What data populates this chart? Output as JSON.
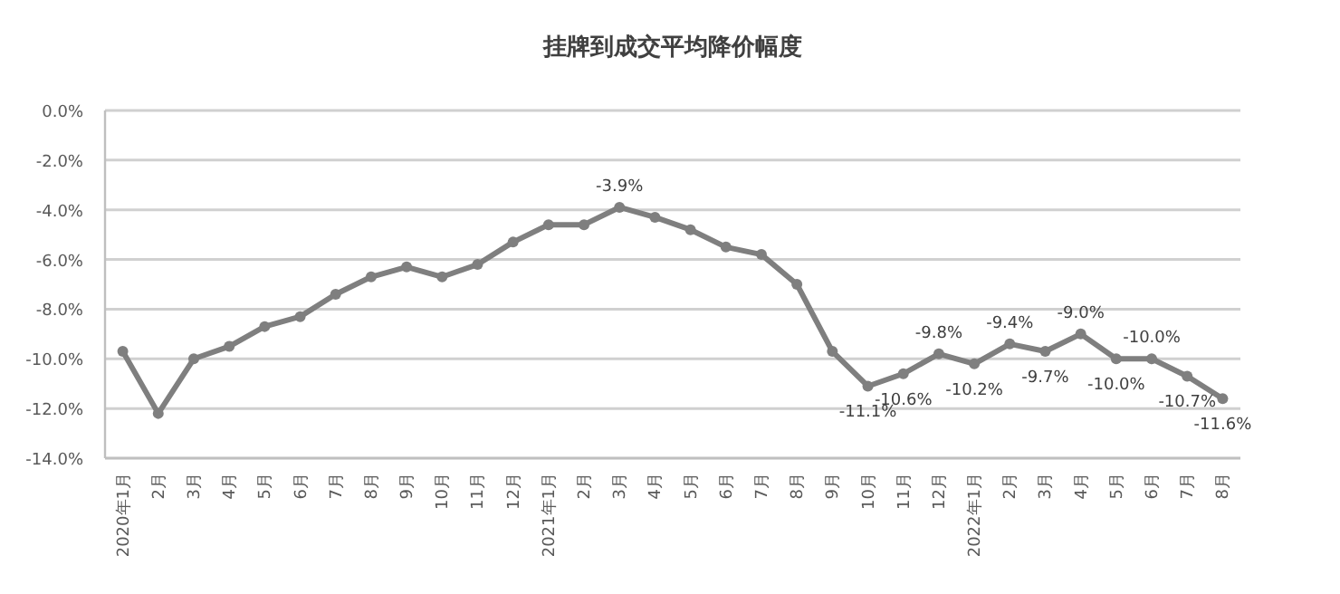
{
  "chart_data": {
    "type": "line",
    "title": "挂牌到成交平均降价幅度",
    "categories": [
      "2020年1月",
      "2月",
      "3月",
      "4月",
      "5月",
      "6月",
      "7月",
      "8月",
      "9月",
      "10月",
      "11月",
      "12月",
      "2021年1月",
      "2月",
      "3月",
      "4月",
      "5月",
      "6月",
      "7月",
      "8月",
      "9月",
      "10月",
      "11月",
      "12月",
      "2022年1月",
      "2月",
      "3月",
      "4月",
      "5月",
      "6月",
      "7月",
      "8月"
    ],
    "series": [
      {
        "color": "#7f7f7f",
        "values": [
          -9.7,
          -12.2,
          -10.0,
          -9.5,
          -8.7,
          -8.3,
          -7.4,
          -6.7,
          -6.3,
          -6.7,
          -6.2,
          -5.3,
          -4.6,
          -4.6,
          -3.9,
          -4.3,
          -4.8,
          -5.5,
          -5.8,
          -7.0,
          -9.7,
          -11.1,
          -10.6,
          -9.8,
          -10.2,
          -9.4,
          -9.7,
          -9.0,
          -10.0,
          -10.0,
          -10.7,
          -11.6
        ],
        "value_labels": [
          null,
          null,
          null,
          null,
          null,
          null,
          null,
          null,
          null,
          null,
          null,
          null,
          null,
          null,
          "-3.9%",
          null,
          null,
          null,
          null,
          null,
          null,
          "-11.1%",
          "-10.6%",
          "-9.8%",
          "-10.2%",
          "-9.4%",
          "-9.7%",
          "-9.0%",
          "-10.0%",
          "-10.0%",
          "-10.7%",
          "-11.6%"
        ]
      }
    ],
    "ylim": [
      -14,
      0
    ],
    "yticks": [
      {
        "value": 0,
        "label": "0.0%"
      },
      {
        "value": -2,
        "label": "-2.0%"
      },
      {
        "value": -4,
        "label": "-4.0%"
      },
      {
        "value": -6,
        "label": "-6.0%"
      },
      {
        "value": -8,
        "label": "-8.0%"
      },
      {
        "value": -10,
        "label": "-10.0%"
      },
      {
        "value": -12,
        "label": "-12.0%"
      },
      {
        "value": -14,
        "label": "-14.0%"
      }
    ],
    "grid": "y",
    "marker": "circle",
    "line_style": "solid"
  }
}
